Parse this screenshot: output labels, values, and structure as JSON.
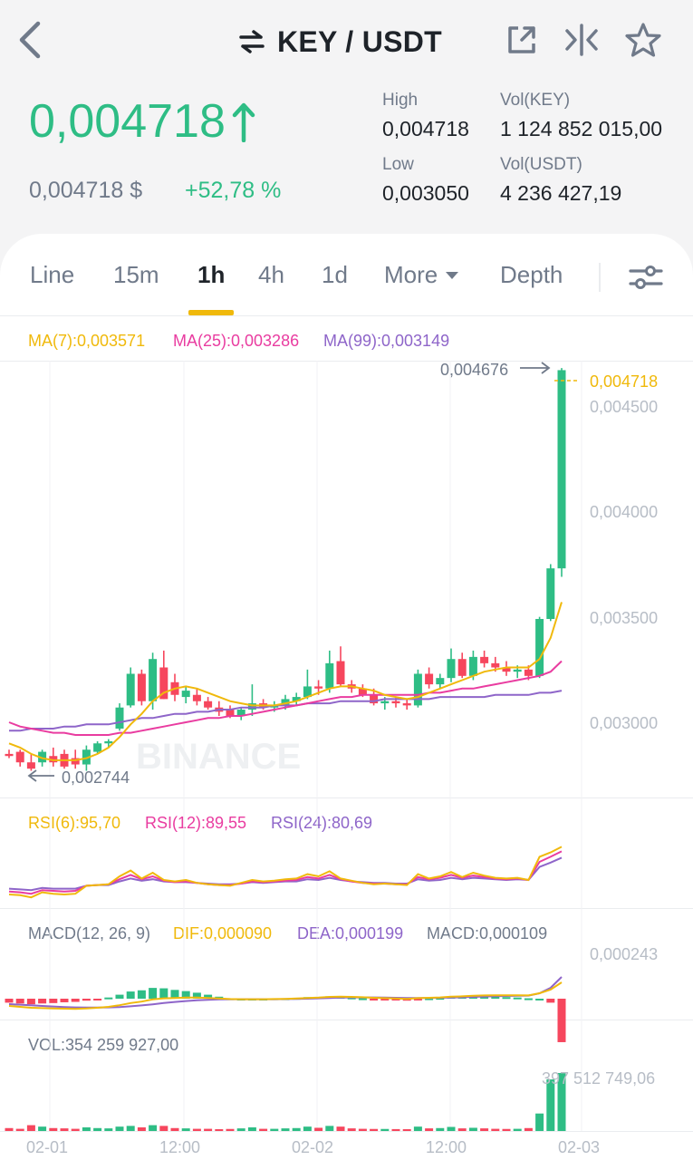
{
  "header": {
    "pair": "KEY / USDT",
    "icons": [
      "back-arrow-icon",
      "swap-icon",
      "external-link-icon",
      "compare-icon",
      "star-icon"
    ]
  },
  "ticker": {
    "last_price": "0,004718",
    "price_usd": "0,004718 $",
    "change": "+52,78 %",
    "high_label": "High",
    "high_value": "0,004718",
    "low_label": "Low",
    "low_value": "0,003050",
    "vol_key_label": "Vol(KEY)",
    "vol_key_value": "1 124 852 015,00",
    "vol_usdt_label": "Vol(USDT)",
    "vol_usdt_value": "4 236 427,19"
  },
  "tabs": {
    "line": "Line",
    "m15": "15m",
    "h1": "1h",
    "h4": "4h",
    "d1": "1d",
    "more": "More",
    "depth": "Depth",
    "active": "1h"
  },
  "indicators": {
    "ma7": "MA(7):0,003571",
    "ma25": "MA(25):0,003286",
    "ma99": "MA(99):0,003149",
    "rsi6": "RSI(6):95,70",
    "rsi12": "RSI(12):89,55",
    "rsi24": "RSI(24):80,69",
    "macd_params": "MACD(12, 26, 9)",
    "dif": "DIF:0,000090",
    "dea": "DEA:0,000199",
    "macd": "MACD:0,000109",
    "macd_axis": "0,000243",
    "vol": "VOL:354 259 927,00",
    "vol_max": "397 512 749,06"
  },
  "chart": {
    "max_marker": "0,004676",
    "min_marker": "0,002744",
    "current_price": "0,004718",
    "y_ticks": [
      "0,004500",
      "0,004000",
      "0,003500",
      "0,003000"
    ],
    "x_ticks": [
      "02-01",
      "12:00",
      "02-02",
      "12:00",
      "02-03"
    ],
    "watermark": "BINANCE"
  },
  "colors": {
    "up": "#2ebd85",
    "down": "#f6465d",
    "ma7": "#f0b90b",
    "ma25": "#e93ca0",
    "ma99": "#8e65c9"
  },
  "chart_data": {
    "type": "candlestick",
    "interval": "1h",
    "price_range": [
      0.0027,
      0.0048
    ],
    "current_price": 0.004718,
    "max_price": 0.004676,
    "min_price": 0.002744,
    "candles": [
      {
        "o": 0.00285,
        "h": 0.00287,
        "l": 0.00283,
        "c": 0.00284
      },
      {
        "o": 0.00286,
        "h": 0.00287,
        "l": 0.00279,
        "c": 0.00281
      },
      {
        "o": 0.00281,
        "h": 0.00285,
        "l": 0.00277,
        "c": 0.00278
      },
      {
        "o": 0.00281,
        "h": 0.00287,
        "l": 0.00279,
        "c": 0.00286
      },
      {
        "o": 0.00284,
        "h": 0.00288,
        "l": 0.00279,
        "c": 0.00281
      },
      {
        "o": 0.00285,
        "h": 0.00287,
        "l": 0.00278,
        "c": 0.00279
      },
      {
        "o": 0.00283,
        "h": 0.00287,
        "l": 0.00278,
        "c": 0.0028
      },
      {
        "o": 0.0028,
        "h": 0.00289,
        "l": 0.00277,
        "c": 0.00287
      },
      {
        "o": 0.00286,
        "h": 0.00291,
        "l": 0.00285,
        "c": 0.0029
      },
      {
        "o": 0.0029,
        "h": 0.00292,
        "l": 0.00288,
        "c": 0.00291
      },
      {
        "o": 0.00297,
        "h": 0.00309,
        "l": 0.00296,
        "c": 0.00307
      },
      {
        "o": 0.00308,
        "h": 0.00326,
        "l": 0.00307,
        "c": 0.00323
      },
      {
        "o": 0.00323,
        "h": 0.00325,
        "l": 0.00308,
        "c": 0.0031
      },
      {
        "o": 0.0031,
        "h": 0.00333,
        "l": 0.00306,
        "c": 0.0033
      },
      {
        "o": 0.00326,
        "h": 0.00334,
        "l": 0.00311,
        "c": 0.00311
      },
      {
        "o": 0.00319,
        "h": 0.00323,
        "l": 0.0031,
        "c": 0.00313
      },
      {
        "o": 0.00312,
        "h": 0.00317,
        "l": 0.00309,
        "c": 0.00315
      },
      {
        "o": 0.00313,
        "h": 0.00316,
        "l": 0.00308,
        "c": 0.0031
      },
      {
        "o": 0.0031,
        "h": 0.00312,
        "l": 0.00306,
        "c": 0.00307
      },
      {
        "o": 0.00307,
        "h": 0.0031,
        "l": 0.00303,
        "c": 0.00305
      },
      {
        "o": 0.00306,
        "h": 0.00308,
        "l": 0.00302,
        "c": 0.00303
      },
      {
        "o": 0.00303,
        "h": 0.00307,
        "l": 0.00301,
        "c": 0.00306
      },
      {
        "o": 0.00306,
        "h": 0.00318,
        "l": 0.00303,
        "c": 0.00309
      },
      {
        "o": 0.00309,
        "h": 0.00311,
        "l": 0.00306,
        "c": 0.00307
      },
      {
        "o": 0.00307,
        "h": 0.0031,
        "l": 0.00305,
        "c": 0.00308
      },
      {
        "o": 0.00308,
        "h": 0.00313,
        "l": 0.00306,
        "c": 0.00311
      },
      {
        "o": 0.0031,
        "h": 0.00314,
        "l": 0.00308,
        "c": 0.00312
      },
      {
        "o": 0.00312,
        "h": 0.00325,
        "l": 0.00311,
        "c": 0.00317
      },
      {
        "o": 0.00317,
        "h": 0.0032,
        "l": 0.00313,
        "c": 0.00316
      },
      {
        "o": 0.00316,
        "h": 0.00334,
        "l": 0.00314,
        "c": 0.00328
      },
      {
        "o": 0.00329,
        "h": 0.00336,
        "l": 0.00317,
        "c": 0.00318
      },
      {
        "o": 0.00318,
        "h": 0.0032,
        "l": 0.00314,
        "c": 0.00316
      },
      {
        "o": 0.00316,
        "h": 0.00318,
        "l": 0.00312,
        "c": 0.00313
      },
      {
        "o": 0.00313,
        "h": 0.00316,
        "l": 0.00308,
        "c": 0.00309
      },
      {
        "o": 0.00309,
        "h": 0.00312,
        "l": 0.00306,
        "c": 0.0031
      },
      {
        "o": 0.0031,
        "h": 0.00312,
        "l": 0.00307,
        "c": 0.00309
      },
      {
        "o": 0.00309,
        "h": 0.00311,
        "l": 0.00306,
        "c": 0.00308
      },
      {
        "o": 0.00308,
        "h": 0.00325,
        "l": 0.00307,
        "c": 0.00323
      },
      {
        "o": 0.00323,
        "h": 0.00326,
        "l": 0.00316,
        "c": 0.00318
      },
      {
        "o": 0.00318,
        "h": 0.00323,
        "l": 0.00316,
        "c": 0.00321
      },
      {
        "o": 0.00321,
        "h": 0.00335,
        "l": 0.00319,
        "c": 0.0033
      },
      {
        "o": 0.0033,
        "h": 0.00333,
        "l": 0.00321,
        "c": 0.00322
      },
      {
        "o": 0.00322,
        "h": 0.00334,
        "l": 0.0032,
        "c": 0.00331
      },
      {
        "o": 0.00331,
        "h": 0.00334,
        "l": 0.00326,
        "c": 0.00328
      },
      {
        "o": 0.00328,
        "h": 0.00331,
        "l": 0.00324,
        "c": 0.00326
      },
      {
        "o": 0.00326,
        "h": 0.00329,
        "l": 0.00322,
        "c": 0.00324
      },
      {
        "o": 0.00324,
        "h": 0.00327,
        "l": 0.00321,
        "c": 0.00325
      },
      {
        "o": 0.00325,
        "h": 0.00327,
        "l": 0.0032,
        "c": 0.00322
      },
      {
        "o": 0.00322,
        "h": 0.0035,
        "l": 0.00321,
        "c": 0.00349
      },
      {
        "o": 0.00349,
        "h": 0.00375,
        "l": 0.00348,
        "c": 0.00373
      },
      {
        "o": 0.00373,
        "h": 0.00468,
        "l": 0.00369,
        "c": 0.00467
      }
    ],
    "ma7": [
      0.0029,
      0.00288,
      0.00285,
      0.00283,
      0.00282,
      0.00282,
      0.00282,
      0.00283,
      0.00285,
      0.00288,
      0.00293,
      0.00299,
      0.00304,
      0.0031,
      0.00314,
      0.00316,
      0.00317,
      0.00316,
      0.00314,
      0.00312,
      0.0031,
      0.00309,
      0.00308,
      0.00308,
      0.00308,
      0.00309,
      0.0031,
      0.00312,
      0.00314,
      0.00316,
      0.00317,
      0.00317,
      0.00316,
      0.00315,
      0.00313,
      0.00312,
      0.00311,
      0.00312,
      0.00314,
      0.00316,
      0.00318,
      0.0032,
      0.00322,
      0.00324,
      0.00325,
      0.00326,
      0.00326,
      0.00326,
      0.0033,
      0.0034,
      0.00357
    ],
    "ma25": [
      0.003,
      0.00298,
      0.00297,
      0.00296,
      0.00295,
      0.00295,
      0.00294,
      0.00294,
      0.00294,
      0.00294,
      0.00295,
      0.00295,
      0.00296,
      0.00297,
      0.00298,
      0.00299,
      0.003,
      0.00301,
      0.00302,
      0.00302,
      0.00303,
      0.00303,
      0.00304,
      0.00305,
      0.00306,
      0.00307,
      0.00308,
      0.00309,
      0.0031,
      0.00311,
      0.00312,
      0.00312,
      0.00313,
      0.00313,
      0.00313,
      0.00313,
      0.00313,
      0.00313,
      0.00314,
      0.00314,
      0.00315,
      0.00316,
      0.00316,
      0.00317,
      0.00318,
      0.00319,
      0.0032,
      0.00321,
      0.00322,
      0.00324,
      0.00329
    ],
    "ma99": [
      0.00296,
      0.00296,
      0.00297,
      0.00297,
      0.00297,
      0.00298,
      0.00298,
      0.00299,
      0.00299,
      0.00299,
      0.003,
      0.00301,
      0.00302,
      0.00302,
      0.00303,
      0.00304,
      0.00304,
      0.00305,
      0.00305,
      0.00306,
      0.00306,
      0.00307,
      0.00307,
      0.00307,
      0.00308,
      0.00308,
      0.00308,
      0.00309,
      0.00309,
      0.00309,
      0.0031,
      0.0031,
      0.0031,
      0.0031,
      0.00311,
      0.00311,
      0.00311,
      0.00311,
      0.00311,
      0.00312,
      0.00312,
      0.00312,
      0.00312,
      0.00312,
      0.00313,
      0.00313,
      0.00313,
      0.00313,
      0.00314,
      0.00314,
      0.00315
    ],
    "rsi6": [
      30,
      29,
      26,
      33,
      31,
      30,
      31,
      42,
      43,
      44,
      55,
      63,
      52,
      60,
      50,
      48,
      50,
      46,
      44,
      43,
      42,
      46,
      50,
      48,
      49,
      51,
      52,
      58,
      55,
      62,
      52,
      49,
      46,
      44,
      45,
      44,
      43,
      58,
      52,
      55,
      61,
      54,
      60,
      56,
      53,
      52,
      53,
      50,
      82,
      88,
      95.7
    ],
    "rsi12": [
      34,
      33,
      31,
      36,
      35,
      34,
      35,
      42,
      43,
      44,
      51,
      57,
      51,
      55,
      49,
      47,
      48,
      46,
      44,
      43,
      43,
      45,
      48,
      47,
      48,
      49,
      50,
      54,
      52,
      57,
      51,
      48,
      46,
      45,
      45,
      44,
      44,
      54,
      51,
      53,
      57,
      53,
      56,
      54,
      52,
      51,
      52,
      50,
      75,
      82,
      89.55
    ],
    "rsi24": [
      38,
      37,
      36,
      39,
      38,
      38,
      38,
      42,
      43,
      43,
      48,
      52,
      49,
      51,
      48,
      47,
      47,
      46,
      45,
      44,
      44,
      45,
      47,
      46,
      47,
      48,
      48,
      51,
      50,
      53,
      50,
      48,
      47,
      46,
      46,
      45,
      45,
      51,
      49,
      50,
      53,
      51,
      53,
      52,
      51,
      50,
      51,
      50,
      68,
      74,
      80.69
    ],
    "dif": [
      -4e-05,
      -4.5e-05,
      -5e-05,
      -5.2e-05,
      -5.4e-05,
      -5.5e-05,
      -5.6e-05,
      -5.4e-05,
      -5e-05,
      -4.5e-05,
      -3.6e-05,
      -2.4e-05,
      -1.6e-05,
      -4e-06,
      2e-06,
      4e-06,
      6e-06,
      6e-06,
      4e-06,
      1e-06,
      -2e-06,
      -3e-06,
      -3e-06,
      -3e-06,
      -2e-06,
      -1e-06,
      1e-06,
      4e-06,
      6e-06,
      1e-05,
      1.1e-05,
      1e-05,
      8e-06,
      5e-06,
      3e-06,
      1e-06,
      -1e-06,
      3e-06,
      5e-06,
      7e-06,
      1.1e-05,
      1.3e-05,
      1.6e-05,
      1.8e-05,
      1.9e-05,
      1.9e-05,
      1.9e-05,
      1.8e-05,
      3e-05,
      5e-05,
      9e-05
    ],
    "dea": [
      -3e-05,
      -3.3e-05,
      -3.6e-05,
      -4e-05,
      -4.3e-05,
      -4.6e-05,
      -4.8e-05,
      -4.9e-05,
      -4.9e-05,
      -4.8e-05,
      -4.6e-05,
      -4.2e-05,
      -3.7e-05,
      -3.1e-05,
      -2.4e-05,
      -1.8e-05,
      -1.3e-05,
      -9e-06,
      -6e-06,
      -4e-06,
      -3e-06,
      -3e-06,
      -3e-06,
      -3e-06,
      -3e-06,
      -2e-06,
      -1e-06,
      0.0,
      2e-06,
      4e-06,
      6e-06,
      7e-06,
      7e-06,
      7e-06,
      6e-06,
      5e-06,
      4e-06,
      4e-06,
      4e-06,
      5e-06,
      6e-06,
      8e-06,
      1e-05,
      1.2e-05,
      1.4e-05,
      1.5e-05,
      1.6e-05,
      1.7e-05,
      3e-05,
      6e-05,
      0.000199
    ],
    "volume": [
      20,
      15,
      40,
      30,
      20,
      18,
      15,
      25,
      20,
      18,
      30,
      35,
      25,
      40,
      35,
      20,
      18,
      15,
      15,
      12,
      14,
      18,
      25,
      15,
      15,
      18,
      20,
      30,
      22,
      35,
      30,
      18,
      15,
      14,
      14,
      13,
      12,
      30,
      18,
      20,
      28,
      18,
      22,
      18,
      15,
      14,
      15,
      20,
      120,
      354,
      398
    ]
  }
}
